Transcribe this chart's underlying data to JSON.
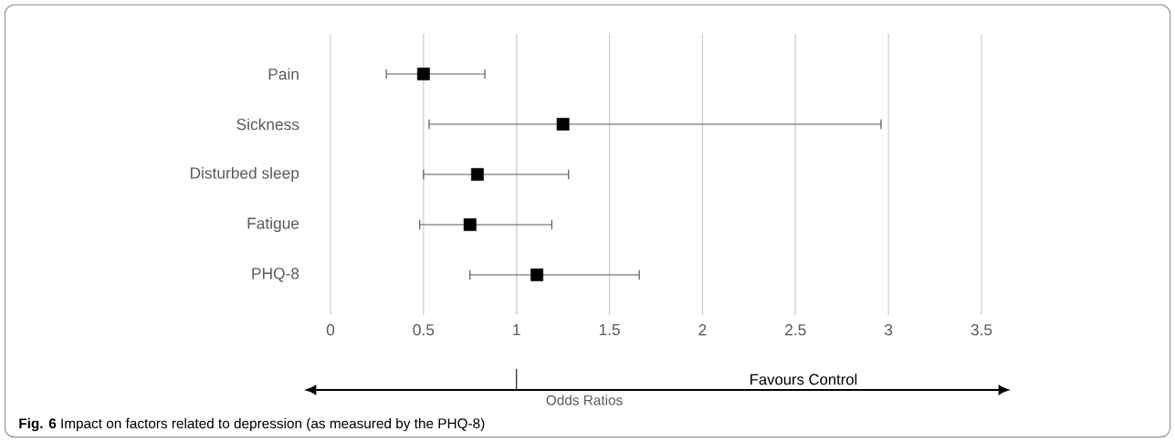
{
  "chart_data": {
    "type": "scatter",
    "orientation": "horizontal",
    "categories": [
      "Pain",
      "Sickness",
      "Disturbed sleep",
      "Fatigue",
      "PHQ-8"
    ],
    "values": [
      0.5,
      1.25,
      0.79,
      0.75,
      1.11
    ],
    "errors": [
      [
        0.3,
        0.83
      ],
      [
        0.53,
        2.96
      ],
      [
        0.5,
        1.28
      ],
      [
        0.48,
        1.19
      ],
      [
        0.75,
        1.66
      ]
    ],
    "color": "#000000",
    "marker": "square",
    "grid": "x",
    "xlim": [
      0,
      3.5
    ],
    "xticks": [
      0,
      0.5,
      1,
      1.5,
      2,
      2.5,
      3,
      3.5
    ],
    "xlabel": "Odds Ratios",
    "annotations": [
      "Favours Control",
      "**Fig. 6** Impact on factors related to depression (as measured by the PHQ-8)"
    ]
  }
}
